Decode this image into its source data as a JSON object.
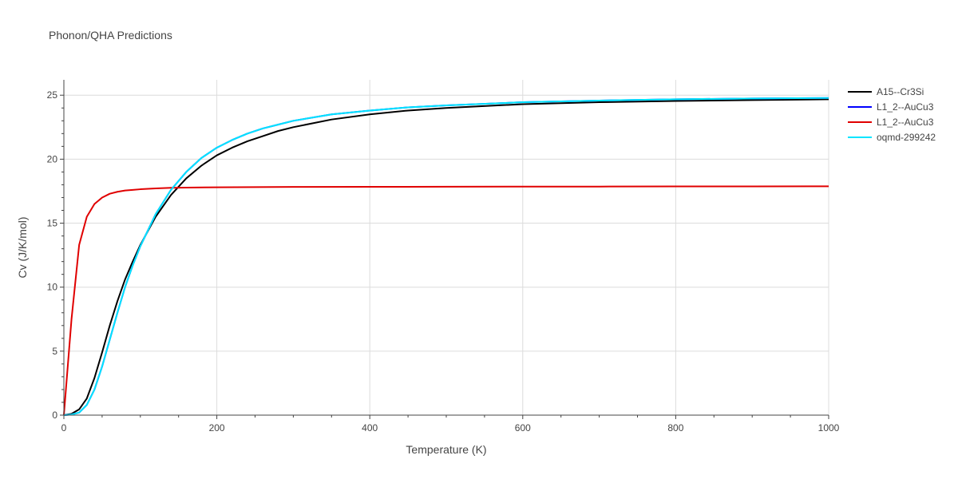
{
  "chart_data": {
    "type": "line",
    "title": "Phonon/QHA Predictions",
    "xlabel": "Temperature (K)",
    "ylabel": "Cv (J/K/mol)",
    "xlim": [
      0,
      1000
    ],
    "ylim": [
      0,
      26.2
    ],
    "xticks": [
      0,
      200,
      400,
      600,
      800,
      1000
    ],
    "yticks": [
      0,
      5,
      10,
      15,
      20,
      25
    ],
    "grid": true,
    "legend_position": "top-right",
    "series": [
      {
        "name": "A15--Cr3Si",
        "color": "#000000",
        "x": [
          0,
          10,
          20,
          30,
          40,
          50,
          60,
          70,
          80,
          90,
          100,
          120,
          140,
          160,
          180,
          200,
          220,
          240,
          260,
          280,
          300,
          350,
          400,
          450,
          500,
          600,
          700,
          800,
          900,
          1000
        ],
        "y": [
          0,
          0.1,
          0.45,
          1.3,
          2.9,
          4.9,
          7.0,
          8.9,
          10.6,
          12.0,
          13.3,
          15.5,
          17.2,
          18.5,
          19.5,
          20.3,
          20.9,
          21.4,
          21.8,
          22.2,
          22.5,
          23.1,
          23.5,
          23.8,
          24.0,
          24.3,
          24.45,
          24.55,
          24.62,
          24.68
        ]
      },
      {
        "name": "L1_2--AuCu3",
        "color": "#0000ff",
        "x": [
          0,
          10,
          20,
          30,
          40,
          50,
          60,
          70,
          80,
          90,
          100,
          120,
          140,
          160,
          180,
          200,
          220,
          240,
          260,
          280,
          300,
          350,
          400,
          450,
          500,
          600,
          700,
          800,
          900,
          1000
        ],
        "y": [
          0,
          0.05,
          0.2,
          0.8,
          2.0,
          3.8,
          5.9,
          8.0,
          10.0,
          11.7,
          13.2,
          15.7,
          17.6,
          19.0,
          20.1,
          20.9,
          21.5,
          22.0,
          22.4,
          22.7,
          23.0,
          23.5,
          23.8,
          24.05,
          24.2,
          24.45,
          24.58,
          24.68,
          24.74,
          24.78
        ]
      },
      {
        "name": "L1_2--AuCu3",
        "color": "#e00000",
        "x": [
          0,
          10,
          20,
          30,
          40,
          50,
          60,
          70,
          80,
          90,
          100,
          120,
          140,
          160,
          200,
          300,
          400,
          500,
          600,
          700,
          800,
          900,
          1000
        ],
        "y": [
          0,
          7.5,
          13.3,
          15.5,
          16.5,
          17.0,
          17.3,
          17.45,
          17.55,
          17.6,
          17.65,
          17.72,
          17.76,
          17.78,
          17.8,
          17.83,
          17.84,
          17.85,
          17.86,
          17.86,
          17.87,
          17.87,
          17.88
        ]
      },
      {
        "name": "oqmd-299242",
        "color": "#00e5ff",
        "x": [
          0,
          10,
          20,
          30,
          40,
          50,
          60,
          70,
          80,
          90,
          100,
          120,
          140,
          160,
          180,
          200,
          220,
          240,
          260,
          280,
          300,
          350,
          400,
          450,
          500,
          600,
          700,
          800,
          900,
          1000
        ],
        "y": [
          0,
          0.05,
          0.2,
          0.8,
          2.0,
          3.8,
          5.9,
          8.0,
          10.0,
          11.7,
          13.2,
          15.7,
          17.6,
          19.0,
          20.1,
          20.9,
          21.5,
          22.0,
          22.4,
          22.7,
          23.0,
          23.5,
          23.8,
          24.05,
          24.2,
          24.45,
          24.58,
          24.68,
          24.74,
          24.78
        ]
      }
    ]
  }
}
